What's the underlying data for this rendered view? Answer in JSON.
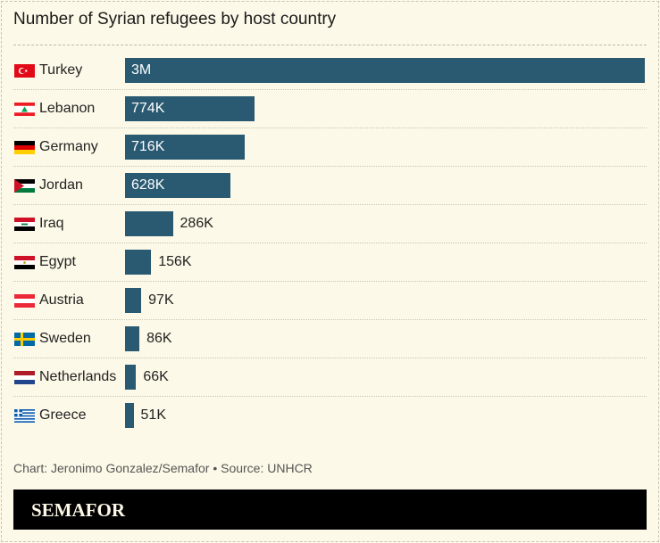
{
  "chart_data": {
    "type": "bar",
    "orientation": "horizontal",
    "title": "Number of Syrian refugees by host country",
    "categories": [
      "Turkey",
      "Lebanon",
      "Germany",
      "Jordan",
      "Iraq",
      "Egypt",
      "Austria",
      "Sweden",
      "Netherlands",
      "Greece"
    ],
    "values": [
      3110000,
      774000,
      716000,
      628000,
      286000,
      156000,
      97000,
      86000,
      66000,
      51000
    ],
    "labels": [
      "3M",
      "774K",
      "716K",
      "628K",
      "286K",
      "156K",
      "97K",
      "86K",
      "66K",
      "51K"
    ],
    "bar_color": "#2a5a72",
    "grid": false
  },
  "note": "Chart: Jeronimo Gonzalez/Semafor • Source: UNHCR",
  "footer": {
    "logo": "SEMAFOR"
  }
}
